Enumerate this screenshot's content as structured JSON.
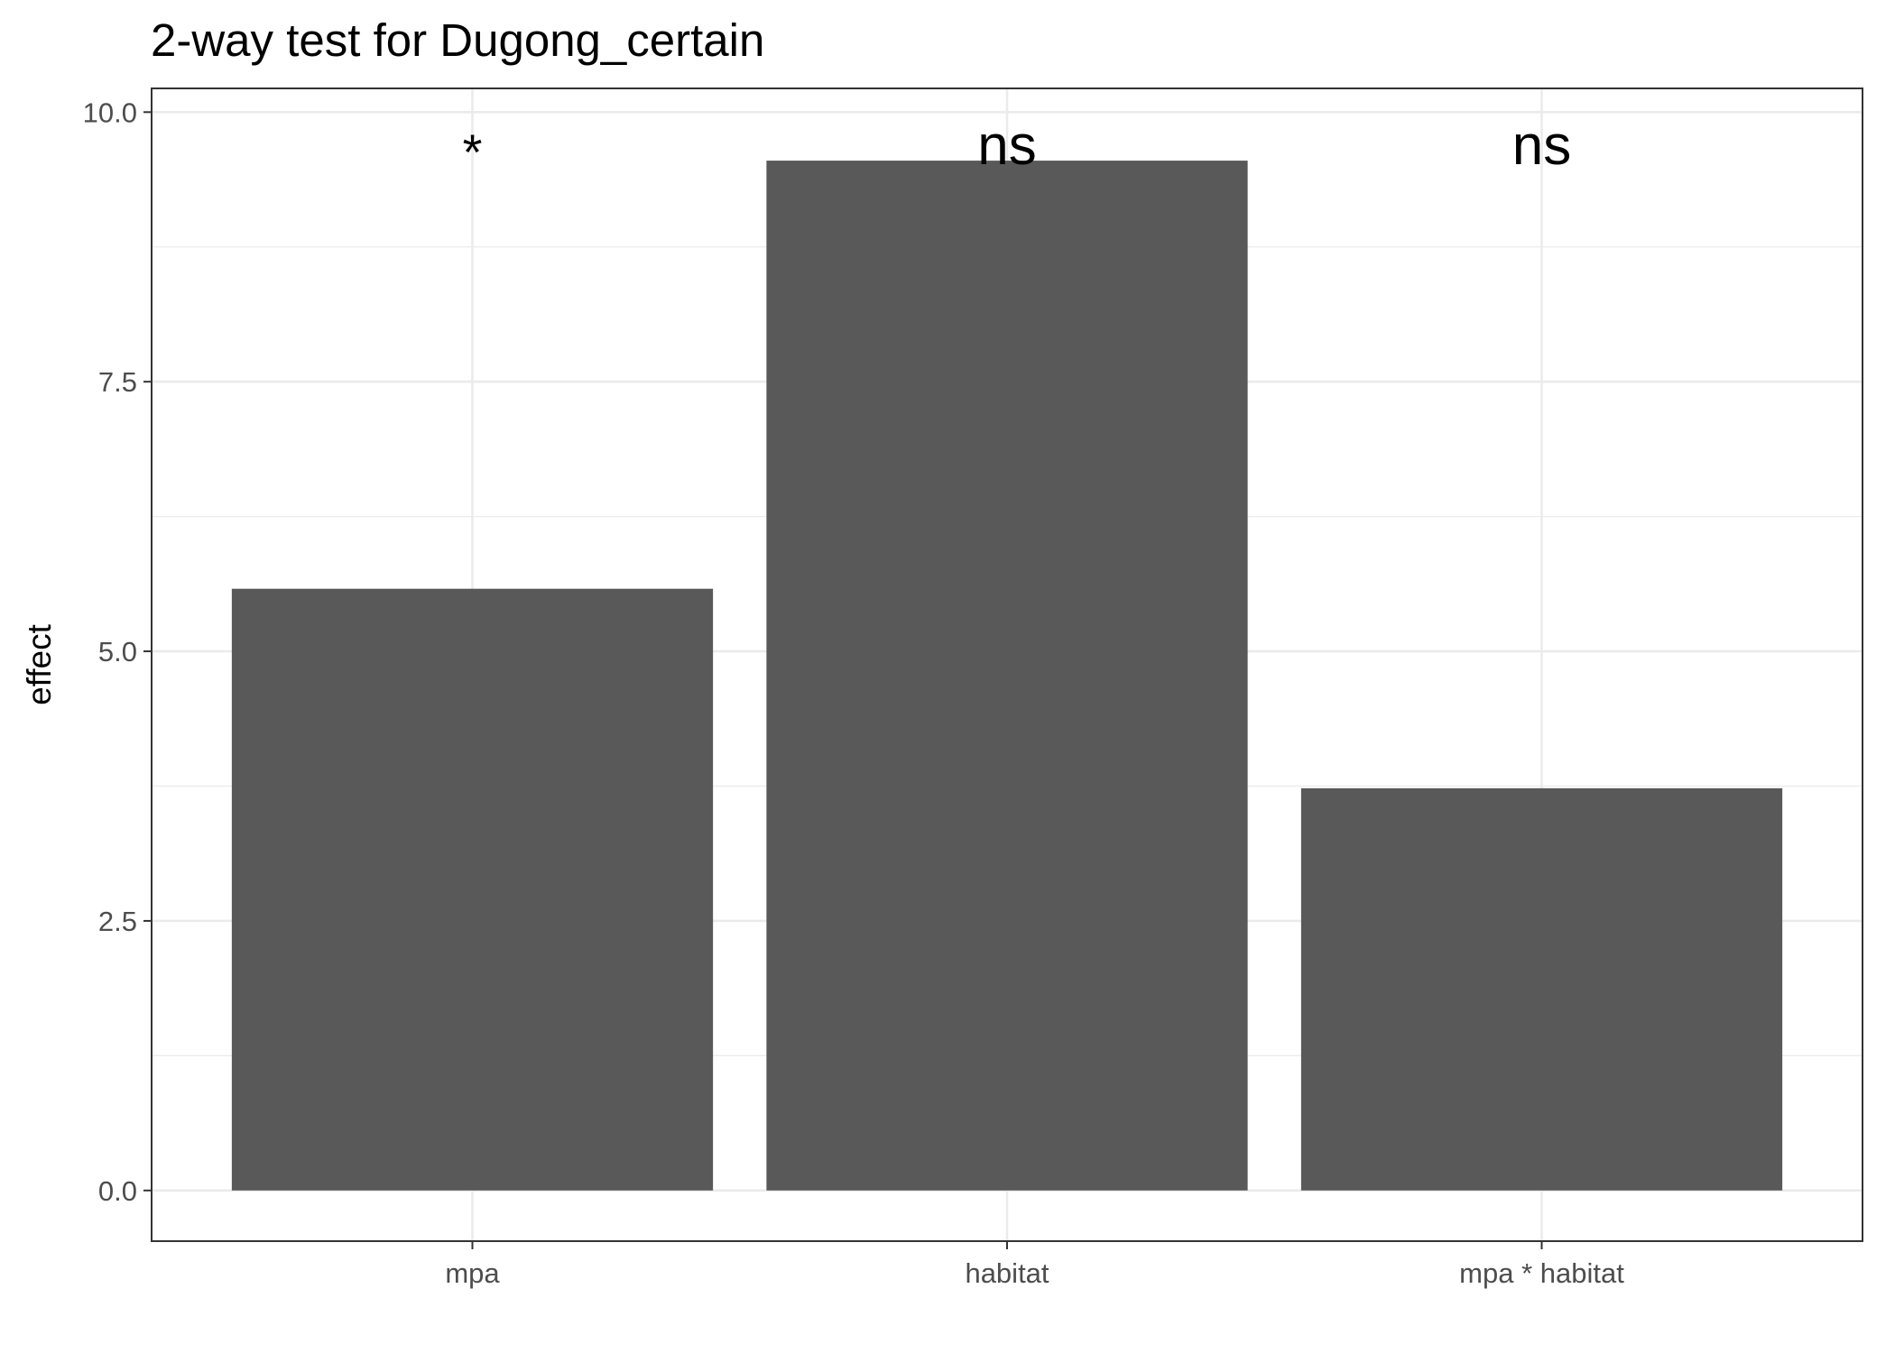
{
  "chart_data": {
    "type": "bar",
    "title": "2-way test for Dugong_certain",
    "xlabel": "",
    "ylabel": "effect",
    "categories": [
      "mpa",
      "habitat",
      "mpa * habitat"
    ],
    "values": [
      5.58,
      9.55,
      3.73
    ],
    "bar_labels": [
      "*",
      "ns",
      "ns"
    ],
    "label_y": 9.7,
    "ylim": [
      -0.47,
      10.22
    ],
    "yticks": [
      0.0,
      2.5,
      5.0,
      7.5,
      10.0
    ],
    "ytick_labels": [
      "0.0",
      "2.5",
      "5.0",
      "7.5",
      "10.0"
    ],
    "grid": true,
    "bar_color": "#595959",
    "panel_border_color": "#333333",
    "grid_color": "#ebebeb"
  }
}
